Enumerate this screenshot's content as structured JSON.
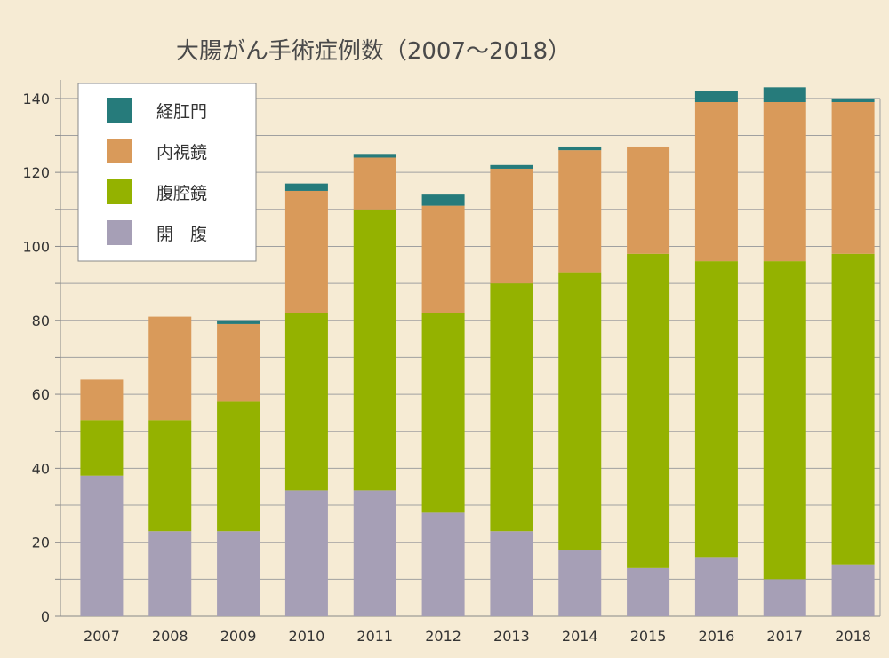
{
  "chart_data": {
    "type": "bar",
    "stacked": true,
    "title": "大腸がん手術症例数（2007～2018）",
    "categories": [
      "2007",
      "2008",
      "2009",
      "2010",
      "2011",
      "2012",
      "2013",
      "2014",
      "2015",
      "2016",
      "2017",
      "2018"
    ],
    "ylim": [
      0,
      145
    ],
    "yticks": [
      0,
      20,
      40,
      60,
      80,
      100,
      120,
      140
    ],
    "grid": true,
    "legend_position": "top-left",
    "series": [
      {
        "name": "開　腹",
        "color": "#a69fb6",
        "values": [
          38,
          23,
          23,
          34,
          34,
          28,
          23,
          18,
          13,
          16,
          10,
          14
        ]
      },
      {
        "name": "腹腔鏡",
        "color": "#94b200",
        "values": [
          15,
          30,
          35,
          48,
          76,
          54,
          67,
          75,
          85,
          80,
          86,
          84
        ]
      },
      {
        "name": "内視鏡",
        "color": "#d99a5a",
        "values": [
          11,
          28,
          21,
          33,
          14,
          29,
          31,
          33,
          29,
          43,
          43,
          41
        ]
      },
      {
        "name": "経肛門",
        "color": "#267b7b",
        "values": [
          0,
          0,
          1,
          2,
          1,
          3,
          1,
          1,
          0,
          3,
          4,
          1
        ]
      }
    ],
    "legend_order": [
      3,
      2,
      1,
      0
    ]
  }
}
